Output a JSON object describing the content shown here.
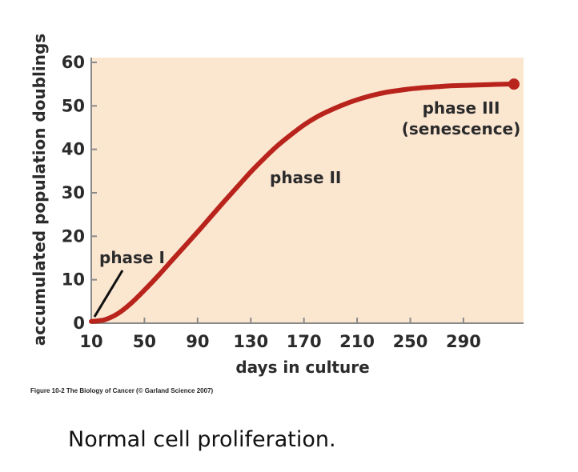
{
  "chart_data": {
    "type": "line",
    "xlabel": "days in culture",
    "ylabel": "accumulated population doublings",
    "x_ticks": [
      10,
      50,
      90,
      130,
      170,
      210,
      250,
      290
    ],
    "y_ticks": [
      0,
      10,
      20,
      30,
      40,
      50,
      60
    ],
    "xlim": [
      10,
      338
    ],
    "ylim": [
      0,
      62
    ],
    "grid": false,
    "series": [
      {
        "color": "#b8241c",
        "x": [
          10,
          20,
          30,
          40,
          50,
          60,
          70,
          80,
          90,
          100,
          110,
          120,
          130,
          140,
          150,
          160,
          170,
          180,
          190,
          200,
          210,
          220,
          230,
          240,
          250,
          260,
          270,
          280,
          290,
          300,
          310,
          320,
          328
        ],
        "y": [
          0.4,
          0.8,
          2.2,
          4.6,
          7.6,
          10.8,
          14.2,
          17.6,
          21.0,
          24.5,
          28.0,
          31.4,
          34.8,
          37.9,
          40.8,
          43.3,
          45.6,
          47.5,
          49.0,
          50.3,
          51.4,
          52.3,
          53.0,
          53.5,
          53.9,
          54.2,
          54.4,
          54.6,
          54.7,
          54.8,
          54.9,
          55.0,
          55.0
        ]
      }
    ],
    "end_marker": {
      "x": 328,
      "y": 55.0
    },
    "annotations": [
      {
        "text": "phase I"
      },
      {
        "text": "phase II"
      },
      {
        "text": "phase III"
      },
      {
        "text": "(senescence)"
      }
    ],
    "colors": {
      "plot_background": "#fbe6d0",
      "curve": "#b8241c",
      "axis": "#8a8a8a"
    }
  },
  "credit": "Figure 10-2 The Biology of Cancer (© Garland Science 2007)",
  "caption": "Normal cell proliferation."
}
